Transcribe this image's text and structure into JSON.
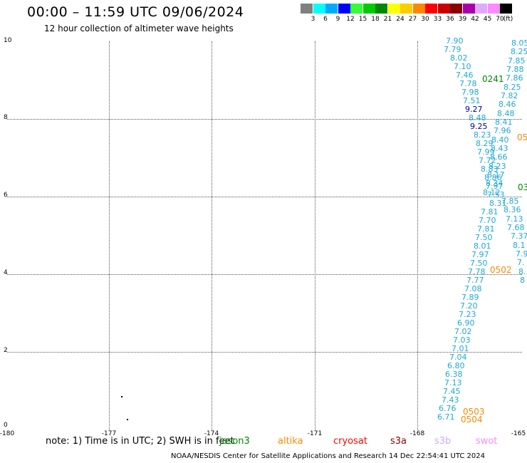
{
  "header": {
    "title": "00:00 – 11:59 UTC 09/06/2024",
    "subtitle": "12 hour collection of altimeter wave heights"
  },
  "legend": {
    "unit_label": "(ft)",
    "colors": [
      "#808080",
      "#00ffff",
      "#00aaff",
      "#0000ff",
      "#33ff33",
      "#00cc00",
      "#008800",
      "#ffff00",
      "#ffcc00",
      "#ff8800",
      "#ff0000",
      "#cc0000",
      "#880000",
      "#aa00aa",
      "#ddaaff",
      "#ff88ff",
      "#000000"
    ],
    "labels": [
      "3",
      "6",
      "9",
      "12",
      "15",
      "18",
      "21",
      "24",
      "27",
      "30",
      "33",
      "36",
      "39",
      "42",
      "45",
      "70"
    ]
  },
  "axes": {
    "x_ticks": [
      "-180",
      "-177",
      "-174",
      "-171",
      "-168",
      "-165"
    ],
    "y_ticks": [
      "10",
      "8",
      "6",
      "4",
      "2",
      "0"
    ]
  },
  "track_a": {
    "color": "#1fa8d8",
    "values": [
      "7.90",
      "7.79",
      "8.02",
      "7.10",
      "7.46",
      "7.78",
      "7.98",
      "7.51",
      "9.27",
      "8.48",
      "9.25",
      "8.23",
      "8.29",
      "7.99",
      "7.72",
      "8.83",
      "8.86",
      "7.97",
      "7.53",
      "8.31",
      "7.81",
      "7.70",
      "7.81",
      "7.50",
      "8.01",
      "7.97",
      "7.50",
      "7.78",
      "7.77",
      "7.08",
      "7.89",
      "7.20",
      "7.23",
      "6.90",
      "7.02",
      "7.03",
      "7.01",
      "7.04",
      "6.80",
      "6.38",
      "7.13",
      "7.45",
      "7.43",
      "6.76",
      "6.71"
    ]
  },
  "track_b": {
    "values": [
      "8.05",
      "8.25",
      "7.85",
      "7.88",
      "7.86",
      "8.25",
      "7.82",
      "8.46",
      "8.48",
      "8.41",
      "7.96",
      "8.40",
      "8.43",
      "8.66",
      "8.23",
      "8.17",
      "8.34",
      "8.12",
      "7.85",
      "8.36",
      "7.13",
      "7.68",
      "7.37",
      "8.1",
      "7.9",
      "7.",
      "8.",
      "8"
    ]
  },
  "pass_labels": [
    "0241",
    "0502",
    "0503",
    "0504",
    "05",
    "03"
  ],
  "missions": [
    {
      "name": "jason3",
      "color": "#008800"
    },
    {
      "name": "altika",
      "color": "#ff8800"
    },
    {
      "name": "cryosat",
      "color": "#ff0000"
    },
    {
      "name": "s3a",
      "color": "#880000"
    },
    {
      "name": "s3b",
      "color": "#ccaaff"
    },
    {
      "name": "swot",
      "color": "#ff88ff"
    }
  ],
  "footer": {
    "note": "note: 1) Time is in UTC; 2) SWH is in feet",
    "credit": "NOAA/NESDIS Center for Satellite Applications and Research   14 Dec 22:54:41 UTC 2024"
  }
}
